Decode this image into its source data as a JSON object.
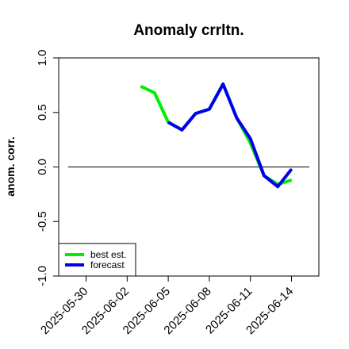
{
  "chart_data": {
    "type": "line",
    "title": "Anomaly crrltn.",
    "ylabel": "anom. corr.",
    "xlabel": "",
    "ylim": [
      -1.0,
      1.0
    ],
    "yticks": [
      "-1.0",
      "-0.5",
      "0.0",
      "0.5",
      "1.0"
    ],
    "xlim": [
      "2025-05-28",
      "2025-06-16"
    ],
    "xticks": [
      "2025-05-30",
      "2025-06-02",
      "2025-06-05",
      "2025-06-08",
      "2025-06-11",
      "2025-06-14"
    ],
    "highlight_tick": "2025-06-05",
    "highlight_color": "#228B22",
    "reference_line": 0.0,
    "legend_position": "bottom-left",
    "series": [
      {
        "name": "best est.",
        "color": "#00ee00",
        "x": [
          "2025-06-03",
          "2025-06-04",
          "2025-06-05",
          "2025-06-06",
          "2025-06-07",
          "2025-06-08",
          "2025-06-09",
          "2025-06-10",
          "2025-06-11",
          "2025-06-12",
          "2025-06-13",
          "2025-06-14"
        ],
        "y": [
          0.74,
          0.68,
          0.41,
          0.34,
          0.49,
          0.53,
          0.76,
          0.45,
          0.22,
          -0.08,
          -0.16,
          -0.12
        ]
      },
      {
        "name": "forecast",
        "color": "#0000ee",
        "x": [
          "2025-06-05",
          "2025-06-06",
          "2025-06-07",
          "2025-06-08",
          "2025-06-09",
          "2025-06-10",
          "2025-06-11",
          "2025-06-12",
          "2025-06-13",
          "2025-06-14"
        ],
        "y": [
          0.41,
          0.34,
          0.49,
          0.53,
          0.76,
          0.45,
          0.26,
          -0.08,
          -0.18,
          -0.02
        ]
      }
    ]
  }
}
